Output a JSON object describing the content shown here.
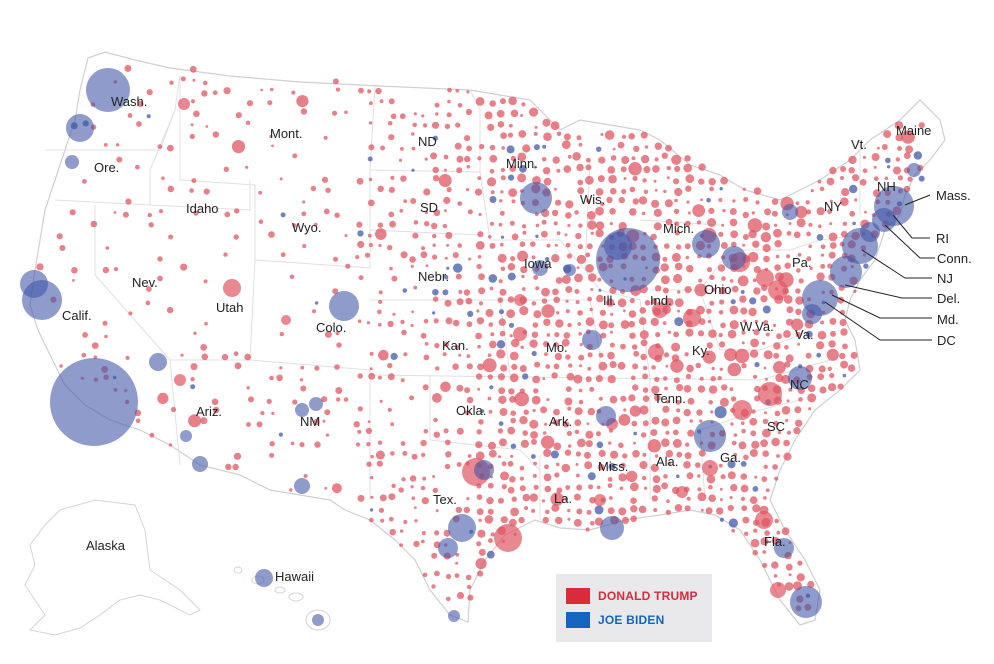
{
  "colors": {
    "trump": "#d92b3a",
    "biden": "#1565c0",
    "trump_bubble": "#e05562",
    "biden_bubble": "#4258a8",
    "land": "#ffffff",
    "border": "#d4d4d8"
  },
  "legend": {
    "trump_label": "DONALD TRUMP",
    "biden_label": "JOE BIDEN"
  },
  "state_labels": {
    "wash": "Wash.",
    "ore": "Ore.",
    "calif": "Calif.",
    "nev": "Nev.",
    "idaho": "Idaho",
    "mont": "Mont.",
    "wyo": "Wyo.",
    "utah": "Utah",
    "colo": "Colo.",
    "ariz": "Ariz.",
    "nm": "NM",
    "nd": "ND",
    "sd": "SD",
    "nebr": "Nebr.",
    "kan": "Kan.",
    "okla": "Okla.",
    "tex": "Tex.",
    "minn": "Minn.",
    "iowa": "Iowa",
    "mo": "Mo.",
    "ark": "Ark.",
    "la": "La.",
    "wis": "Wis.",
    "ill": "Ill.",
    "mich": "Mich.",
    "ind": "Ind.",
    "ohio": "Ohio",
    "ky": "Ky.",
    "tenn": "Tenn.",
    "miss": "Miss.",
    "ala": "Ala.",
    "ga": "Ga.",
    "fla": "Fla.",
    "sc": "SC",
    "nc": "NC",
    "va": "Va.",
    "wva": "W.Va.",
    "pa": "Pa.",
    "ny": "NY",
    "vt": "Vt.",
    "nh": "NH",
    "maine": "Maine",
    "mass": "Mass.",
    "ri": "RI",
    "conn": "Conn.",
    "nj": "NJ",
    "del": "Del.",
    "md": "Md.",
    "dc": "DC",
    "alaska": "Alaska",
    "hawaii": "Hawaii"
  }
}
